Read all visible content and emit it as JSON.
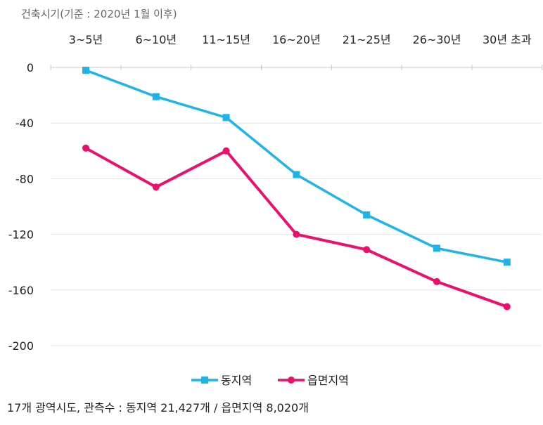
{
  "chart_data": {
    "type": "line",
    "axis_title": "건축시기(기준 : 2020년 1월 이후)",
    "categories": [
      "3~5년",
      "6~10년",
      "11~15년",
      "16~20년",
      "21~25년",
      "26~30년",
      "30년 초과"
    ],
    "category_axis_position": "top",
    "y_ticks": [
      "0",
      "-40",
      "-80",
      "-120",
      "-160",
      "-200"
    ],
    "ylim": [
      -200,
      0
    ],
    "grid": "horizontal",
    "legend_position": "bottom",
    "series": [
      {
        "name": "동지역",
        "color": "#1eb4e8",
        "marker": "square",
        "values": [
          -2,
          -21,
          -36,
          -77,
          -106,
          -130,
          -140
        ]
      },
      {
        "name": "읍면지역",
        "color": "#ec0f6c",
        "marker": "circle",
        "values": [
          -58,
          -86,
          -60,
          -120,
          -131,
          -154,
          -172
        ]
      }
    ]
  },
  "footnote": "17개 광역시도, 관측수 : 동지역 21,427개 / 읍면지역 8,020개"
}
